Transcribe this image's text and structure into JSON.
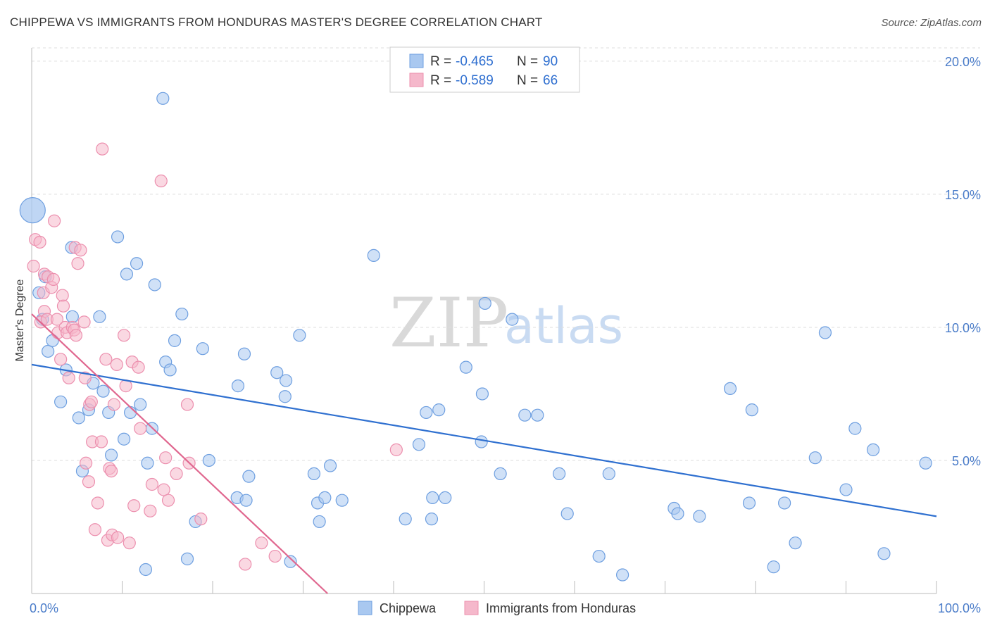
{
  "title": "CHIPPEWA VS IMMIGRANTS FROM HONDURAS MASTER'S DEGREE CORRELATION CHART",
  "source": "Source: ZipAtlas.com",
  "watermark": {
    "zip": "ZIP",
    "atlas": "atlas"
  },
  "colors": {
    "blue_fill": "#a9c8f0",
    "blue_stroke": "#6e9fe0",
    "blue_line": "#2f70d0",
    "pink_fill": "#f5b8cb",
    "pink_stroke": "#ec8fae",
    "pink_line": "#e0678f",
    "grid": "#dddddd",
    "tick": "#4a7cc9"
  },
  "legend": {
    "rows": [
      {
        "r_label": "R =",
        "r_value": "-0.465",
        "n_label": "N =",
        "n_value": "90"
      },
      {
        "r_label": "R =",
        "r_value": "-0.589",
        "n_label": "N =",
        "n_value": "66"
      }
    ]
  },
  "chart_data": {
    "type": "scatter",
    "title": "CHIPPEWA VS IMMIGRANTS FROM HONDURAS MASTER'S DEGREE CORRELATION CHART",
    "xlabel": "",
    "ylabel": "Master's Degree",
    "xlim": [
      0,
      100
    ],
    "ylim": [
      0,
      20.5
    ],
    "x_tick_labels": [
      "0.0%",
      "100.0%"
    ],
    "y_ticks": [
      5,
      10,
      15,
      20
    ],
    "y_tick_labels": [
      "5.0%",
      "10.0%",
      "15.0%",
      "20.0%"
    ],
    "grid": true,
    "series": [
      {
        "name": "Chippewa",
        "color": "#a9c8f0",
        "trend": {
          "x": [
            0,
            100
          ],
          "y": [
            8.6,
            2.9
          ]
        },
        "points": [
          [
            0.1,
            14.4
          ],
          [
            1.5,
            11.9
          ],
          [
            0.8,
            11.3
          ],
          [
            1.2,
            10.3
          ],
          [
            1.8,
            9.1
          ],
          [
            2.3,
            9.5
          ],
          [
            3.2,
            7.2
          ],
          [
            3.8,
            8.4
          ],
          [
            4.5,
            10.4
          ],
          [
            4.4,
            13.0
          ],
          [
            5.2,
            6.6
          ],
          [
            5.6,
            4.6
          ],
          [
            6.3,
            6.9
          ],
          [
            6.8,
            7.9
          ],
          [
            7.5,
            10.4
          ],
          [
            7.9,
            7.6
          ],
          [
            8.5,
            6.8
          ],
          [
            8.8,
            5.2
          ],
          [
            9.5,
            13.4
          ],
          [
            10.2,
            5.8
          ],
          [
            10.5,
            12.0
          ],
          [
            10.9,
            6.8
          ],
          [
            11.6,
            12.4
          ],
          [
            12.0,
            7.1
          ],
          [
            12.6,
            0.9
          ],
          [
            12.8,
            4.9
          ],
          [
            13.3,
            6.2
          ],
          [
            13.6,
            11.6
          ],
          [
            14.5,
            18.6
          ],
          [
            14.8,
            8.7
          ],
          [
            15.3,
            8.4
          ],
          [
            15.8,
            9.5
          ],
          [
            16.6,
            10.5
          ],
          [
            17.2,
            1.3
          ],
          [
            18.1,
            2.7
          ],
          [
            18.9,
            9.2
          ],
          [
            19.6,
            5.0
          ],
          [
            22.7,
            3.6
          ],
          [
            22.8,
            7.8
          ],
          [
            23.5,
            9.0
          ],
          [
            23.7,
            3.5
          ],
          [
            24.0,
            4.4
          ],
          [
            27.1,
            8.3
          ],
          [
            28.1,
            8.0
          ],
          [
            28.0,
            7.4
          ],
          [
            28.6,
            1.2
          ],
          [
            29.6,
            9.7
          ],
          [
            31.2,
            4.5
          ],
          [
            31.6,
            3.4
          ],
          [
            31.8,
            2.7
          ],
          [
            32.4,
            3.6
          ],
          [
            33.0,
            4.8
          ],
          [
            34.3,
            3.5
          ],
          [
            37.8,
            12.7
          ],
          [
            41.3,
            2.8
          ],
          [
            42.8,
            5.6
          ],
          [
            43.6,
            6.8
          ],
          [
            44.3,
            3.6
          ],
          [
            44.2,
            2.8
          ],
          [
            45.0,
            6.9
          ],
          [
            45.7,
            3.6
          ],
          [
            48.0,
            8.5
          ],
          [
            49.7,
            5.7
          ],
          [
            49.8,
            7.5
          ],
          [
            50.1,
            10.9
          ],
          [
            51.8,
            4.5
          ],
          [
            53.1,
            10.3
          ],
          [
            54.5,
            6.7
          ],
          [
            55.9,
            6.7
          ],
          [
            58.3,
            4.5
          ],
          [
            59.2,
            3.0
          ],
          [
            62.7,
            1.4
          ],
          [
            63.8,
            4.5
          ],
          [
            65.3,
            0.7
          ],
          [
            71.0,
            3.2
          ],
          [
            71.4,
            3.0
          ],
          [
            73.8,
            2.9
          ],
          [
            77.2,
            7.7
          ],
          [
            79.3,
            3.4
          ],
          [
            79.6,
            6.9
          ],
          [
            82.0,
            1.0
          ],
          [
            83.2,
            3.4
          ],
          [
            84.4,
            1.9
          ],
          [
            86.6,
            5.1
          ],
          [
            87.7,
            9.8
          ],
          [
            90.0,
            3.9
          ],
          [
            91.0,
            6.2
          ],
          [
            93.0,
            5.4
          ],
          [
            94.2,
            1.5
          ],
          [
            98.8,
            4.9
          ]
        ]
      },
      {
        "name": "Immigrants from Honduras",
        "color": "#f5b8cb",
        "trend": {
          "x": [
            0,
            32.7
          ],
          "y": [
            10.5,
            0.0
          ]
        },
        "points": [
          [
            0.4,
            13.3
          ],
          [
            0.9,
            13.2
          ],
          [
            1.4,
            12.0
          ],
          [
            1.3,
            11.3
          ],
          [
            1.8,
            11.9
          ],
          [
            2.2,
            11.5
          ],
          [
            2.4,
            11.8
          ],
          [
            1.4,
            10.6
          ],
          [
            1.0,
            10.2
          ],
          [
            1.7,
            10.3
          ],
          [
            2.5,
            14.0
          ],
          [
            2.9,
            9.8
          ],
          [
            3.2,
            8.8
          ],
          [
            3.4,
            11.2
          ],
          [
            3.5,
            10.8
          ],
          [
            3.7,
            10.0
          ],
          [
            3.9,
            9.8
          ],
          [
            4.1,
            8.1
          ],
          [
            4.5,
            10.0
          ],
          [
            4.7,
            9.9
          ],
          [
            4.9,
            9.7
          ],
          [
            4.8,
            13.0
          ],
          [
            5.1,
            12.4
          ],
          [
            5.4,
            12.9
          ],
          [
            5.8,
            10.2
          ],
          [
            5.9,
            8.1
          ],
          [
            6.0,
            4.9
          ],
          [
            6.3,
            4.2
          ],
          [
            6.4,
            7.1
          ],
          [
            6.6,
            7.2
          ],
          [
            6.7,
            5.7
          ],
          [
            7.0,
            2.4
          ],
          [
            7.3,
            3.4
          ],
          [
            7.7,
            5.7
          ],
          [
            7.8,
            16.7
          ],
          [
            8.2,
            8.8
          ],
          [
            8.4,
            2.0
          ],
          [
            8.6,
            4.7
          ],
          [
            8.8,
            4.6
          ],
          [
            8.9,
            2.2
          ],
          [
            9.1,
            7.1
          ],
          [
            9.4,
            8.6
          ],
          [
            9.5,
            2.1
          ],
          [
            10.2,
            9.7
          ],
          [
            10.4,
            7.8
          ],
          [
            10.8,
            1.9
          ],
          [
            11.1,
            8.7
          ],
          [
            11.3,
            3.3
          ],
          [
            11.8,
            8.5
          ],
          [
            12.0,
            6.2
          ],
          [
            13.1,
            3.1
          ],
          [
            13.3,
            4.1
          ],
          [
            14.3,
            15.5
          ],
          [
            14.6,
            3.9
          ],
          [
            14.8,
            5.1
          ],
          [
            15.1,
            3.5
          ],
          [
            16.0,
            4.5
          ],
          [
            17.2,
            7.1
          ],
          [
            17.4,
            4.9
          ],
          [
            18.7,
            2.8
          ],
          [
            23.6,
            1.1
          ],
          [
            25.4,
            1.9
          ],
          [
            26.9,
            1.4
          ],
          [
            40.3,
            5.4
          ],
          [
            0.2,
            12.3
          ],
          [
            2.8,
            10.3
          ]
        ]
      }
    ]
  },
  "bottom_legend": [
    "Chippewa",
    "Immigrants from Honduras"
  ]
}
